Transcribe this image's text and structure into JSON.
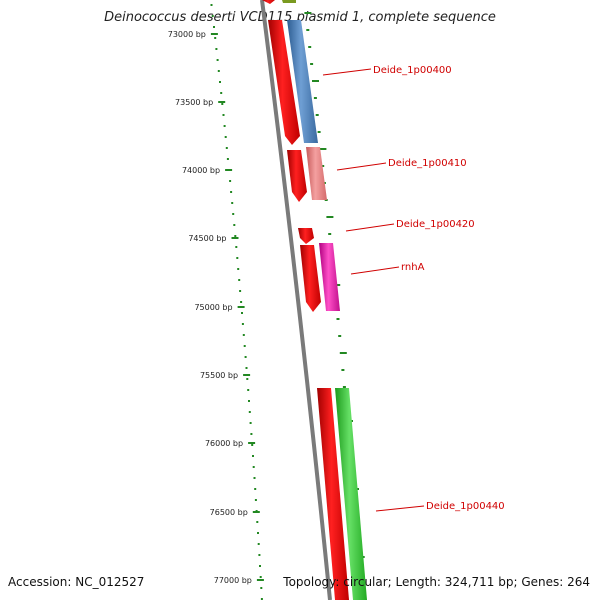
{
  "title": "Deinococcus deserti VCD115 plasmid 1, complete sequence",
  "accession": "Accession: NC_012527",
  "summary": "Topology: circular; Length: 324,711 bp; Genes: 264",
  "ticks": [
    "73000 bp",
    "73500 bp",
    "74000 bp",
    "74500 bp",
    "75000 bp",
    "75500 bp",
    "76000 bp",
    "76500 bp",
    "77000 bp"
  ],
  "genes": [
    "Deide_1p00400",
    "Deide_1p00410",
    "Deide_1p00420",
    "rnhA",
    "Deide_1p00440"
  ],
  "colors": {
    "cds": "#ee1111",
    "gene_blue": "#4a7fb8",
    "gene_salmon": "#ee8080",
    "gene_magenta": "#ee22aa",
    "gene_green": "#33cc33",
    "backbone": "#888888",
    "tick_green": "#228822",
    "label_red": "#d00000"
  }
}
